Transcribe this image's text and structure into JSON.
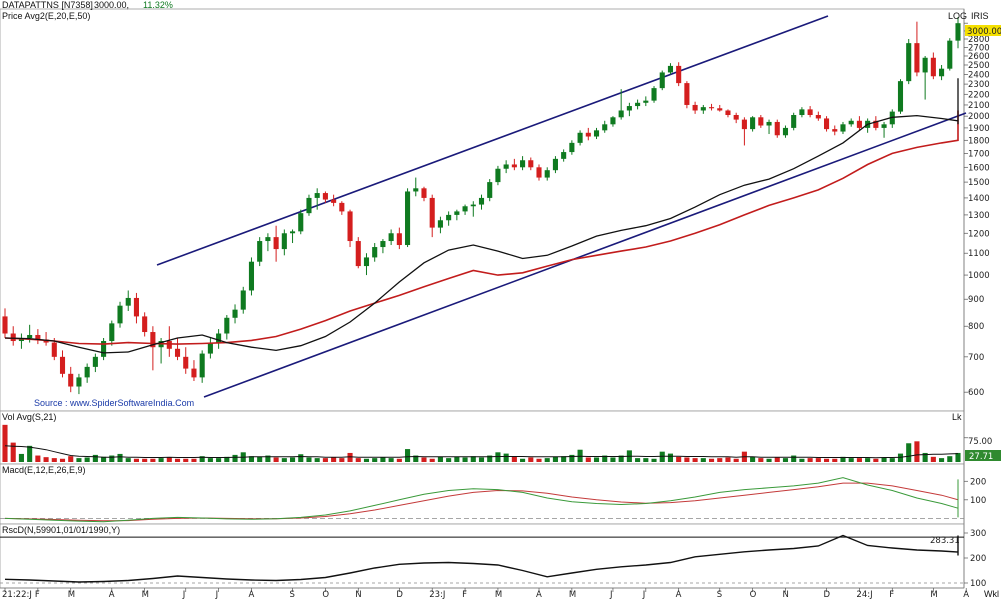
{
  "header": {
    "symbol": "DATAPATTNS [N7358]",
    "price": "3000.00,",
    "change": "11.32%",
    "overlay_label": "Price Avg2(E,20,E,50)",
    "log_label": "LOG",
    "iris_label": "IRIS",
    "last_price_badge": "3000.00",
    "source": "Source : www.SpiderSoftwareIndia.Com",
    "timeframe": "Wkl"
  },
  "colors": {
    "up": "#0f7a20",
    "down": "#d41e1e",
    "ema20": "#111111",
    "ema50": "#c21c1c",
    "trendline": "#1a1a7a",
    "macd_line": "#3a9a3a",
    "signal_line": "#c43a3a",
    "badge_price": "#f5e000",
    "badge_vol": "#2f8a2f"
  },
  "chart_data": [
    {
      "name": "price",
      "type": "candlestick",
      "scale": "log",
      "ylim": [
        560,
        3150
      ],
      "y_ticks": [
        600,
        700,
        800,
        900,
        1000,
        1100,
        1200,
        1300,
        1400,
        1500,
        1600,
        1700,
        1800,
        1900,
        2000,
        2100,
        2200,
        2300,
        2400,
        2500,
        2600,
        2700,
        2800,
        2900,
        3000
      ],
      "x_labels": [
        "21:22:J",
        "F",
        "M",
        "A",
        "M",
        "J",
        "J",
        "A",
        "S",
        "O",
        "N",
        "D",
        "23:J",
        "F",
        "M",
        "A",
        "M",
        "J",
        "J",
        "A",
        "S",
        "O",
        "N",
        "D",
        "24:J",
        "F",
        "M",
        "A"
      ],
      "x_label_week": [
        0,
        4,
        8,
        13,
        17,
        22,
        26,
        30,
        35,
        39,
        43,
        48,
        52,
        56,
        60,
        65,
        69,
        74,
        78,
        82,
        87,
        91,
        95,
        100,
        104,
        108,
        113,
        117
      ],
      "candles": [
        [
          835,
          865,
          760,
          775
        ],
        [
          775,
          800,
          735,
          750
        ],
        [
          750,
          775,
          725,
          760
        ],
        [
          760,
          805,
          745,
          770
        ],
        [
          770,
          790,
          740,
          755
        ],
        [
          755,
          780,
          735,
          745
        ],
        [
          745,
          760,
          690,
          700
        ],
        [
          700,
          720,
          640,
          650
        ],
        [
          650,
          670,
          600,
          615
        ],
        [
          615,
          650,
          595,
          640
        ],
        [
          640,
          680,
          625,
          670
        ],
        [
          670,
          710,
          655,
          700
        ],
        [
          700,
          760,
          690,
          750
        ],
        [
          750,
          820,
          735,
          810
        ],
        [
          810,
          890,
          795,
          875
        ],
        [
          875,
          935,
          855,
          905
        ],
        [
          905,
          925,
          810,
          835
        ],
        [
          835,
          850,
          765,
          780
        ],
        [
          780,
          800,
          660,
          730
        ],
        [
          730,
          760,
          680,
          750
        ],
        [
          750,
          800,
          700,
          725
        ],
        [
          725,
          760,
          690,
          700
        ],
        [
          700,
          730,
          650,
          665
        ],
        [
          665,
          690,
          630,
          640
        ],
        [
          640,
          720,
          625,
          710
        ],
        [
          710,
          760,
          695,
          745
        ],
        [
          745,
          790,
          725,
          775
        ],
        [
          775,
          840,
          755,
          830
        ],
        [
          830,
          880,
          810,
          860
        ],
        [
          860,
          950,
          845,
          935
        ],
        [
          935,
          1080,
          915,
          1060
        ],
        [
          1060,
          1180,
          1040,
          1160
        ],
        [
          1160,
          1200,
          1110,
          1180
        ],
        [
          1180,
          1240,
          1060,
          1120
        ],
        [
          1120,
          1220,
          1090,
          1200
        ],
        [
          1200,
          1220,
          1150,
          1210
        ],
        [
          1210,
          1330,
          1195,
          1310
        ],
        [
          1310,
          1420,
          1295,
          1400
        ],
        [
          1400,
          1460,
          1330,
          1430
        ],
        [
          1430,
          1440,
          1370,
          1390
        ],
        [
          1390,
          1420,
          1350,
          1370
        ],
        [
          1370,
          1380,
          1300,
          1320
        ],
        [
          1320,
          1330,
          1130,
          1160
        ],
        [
          1160,
          1180,
          1030,
          1040
        ],
        [
          1040,
          1100,
          1000,
          1080
        ],
        [
          1080,
          1150,
          1060,
          1130
        ],
        [
          1130,
          1170,
          1100,
          1160
        ],
        [
          1160,
          1220,
          1140,
          1200
        ],
        [
          1200,
          1230,
          1120,
          1140
        ],
        [
          1140,
          1460,
          1130,
          1440
        ],
        [
          1440,
          1530,
          1410,
          1460
        ],
        [
          1460,
          1470,
          1380,
          1400
        ],
        [
          1400,
          1420,
          1180,
          1230
        ],
        [
          1230,
          1290,
          1200,
          1270
        ],
        [
          1270,
          1320,
          1240,
          1300
        ],
        [
          1300,
          1330,
          1270,
          1320
        ],
        [
          1320,
          1360,
          1300,
          1350
        ],
        [
          1350,
          1380,
          1290,
          1360
        ],
        [
          1360,
          1420,
          1330,
          1400
        ],
        [
          1400,
          1520,
          1380,
          1500
        ],
        [
          1500,
          1610,
          1480,
          1590
        ],
        [
          1590,
          1650,
          1560,
          1620
        ],
        [
          1620,
          1660,
          1580,
          1600
        ],
        [
          1600,
          1680,
          1580,
          1650
        ],
        [
          1650,
          1670,
          1580,
          1600
        ],
        [
          1600,
          1620,
          1510,
          1530
        ],
        [
          1530,
          1600,
          1510,
          1580
        ],
        [
          1580,
          1680,
          1560,
          1660
        ],
        [
          1660,
          1730,
          1640,
          1710
        ],
        [
          1710,
          1800,
          1690,
          1780
        ],
        [
          1780,
          1880,
          1760,
          1860
        ],
        [
          1860,
          1900,
          1800,
          1830
        ],
        [
          1830,
          1900,
          1810,
          1880
        ],
        [
          1880,
          1960,
          1860,
          1930
        ],
        [
          1930,
          2000,
          1910,
          1990
        ],
        [
          1990,
          2250,
          1970,
          2050
        ],
        [
          2050,
          2120,
          2000,
          2090
        ],
        [
          2090,
          2150,
          2060,
          2120
        ],
        [
          2120,
          2180,
          2090,
          2140
        ],
        [
          2140,
          2280,
          2120,
          2260
        ],
        [
          2260,
          2440,
          2240,
          2420
        ],
        [
          2420,
          2520,
          2400,
          2490
        ],
        [
          2490,
          2530,
          2280,
          2310
        ],
        [
          2310,
          2330,
          2070,
          2100
        ],
        [
          2100,
          2130,
          2020,
          2050
        ],
        [
          2050,
          2100,
          2020,
          2080
        ],
        [
          2080,
          2110,
          2050,
          2070
        ],
        [
          2070,
          2100,
          2040,
          2050
        ],
        [
          2050,
          2060,
          1990,
          2010
        ],
        [
          2010,
          2030,
          1940,
          1970
        ],
        [
          1970,
          1990,
          1760,
          1890
        ],
        [
          1890,
          2000,
          1870,
          1990
        ],
        [
          1990,
          2010,
          1900,
          1920
        ],
        [
          1920,
          1970,
          1850,
          1950
        ],
        [
          1950,
          1970,
          1820,
          1840
        ],
        [
          1840,
          1920,
          1820,
          1900
        ],
        [
          1900,
          2030,
          1880,
          2010
        ],
        [
          2010,
          2080,
          1990,
          2060
        ],
        [
          2060,
          2090,
          1990,
          2010
        ],
        [
          2010,
          2040,
          1960,
          1980
        ],
        [
          1980,
          2000,
          1870,
          1890
        ],
        [
          1890,
          1920,
          1840,
          1870
        ],
        [
          1870,
          1950,
          1850,
          1930
        ],
        [
          1930,
          1980,
          1910,
          1960
        ],
        [
          1960,
          2000,
          1880,
          1900
        ],
        [
          1900,
          1980,
          1860,
          1960
        ],
        [
          1960,
          2000,
          1880,
          1900
        ],
        [
          1900,
          1950,
          1820,
          1930
        ],
        [
          1930,
          2060,
          1900,
          2040
        ],
        [
          2040,
          2350,
          2020,
          2330
        ],
        [
          2330,
          2800,
          2300,
          2750
        ],
        [
          2750,
          3020,
          2380,
          2420
        ],
        [
          2420,
          2600,
          2150,
          2580
        ],
        [
          2580,
          2640,
          2350,
          2380
        ],
        [
          2380,
          2500,
          2340,
          2460
        ],
        [
          2460,
          2810,
          2440,
          2780
        ],
        [
          2780,
          3080,
          2690,
          3000
        ]
      ],
      "ema20_every3": [
        760,
        758,
        750,
        730,
        712,
        715,
        738,
        760,
        770,
        745,
        730,
        720,
        735,
        765,
        815,
        885,
        970,
        1055,
        1115,
        1140,
        1110,
        1075,
        1090,
        1135,
        1185,
        1215,
        1240,
        1280,
        1345,
        1420,
        1480,
        1520,
        1590,
        1680,
        1780,
        1930,
        1990,
        2005,
        1980,
        1960,
        1955,
        1960,
        1945,
        1930,
        1990,
        2120,
        2230,
        2300,
        2360
      ],
      "ema50_every3": [
        760,
        756,
        750,
        742,
        740,
        745,
        742,
        740,
        742,
        745,
        752,
        765,
        790,
        820,
        855,
        885,
        915,
        950,
        985,
        1020,
        1000,
        1010,
        1040,
        1070,
        1090,
        1110,
        1130,
        1160,
        1200,
        1245,
        1300,
        1355,
        1400,
        1450,
        1525,
        1620,
        1700,
        1745,
        1780,
        1800,
        1810,
        1815,
        1818,
        1820,
        1850,
        1920,
        1960,
        2000,
        2050
      ]
    },
    {
      "name": "volume",
      "type": "bar",
      "label": "Vol Avg(S,21)",
      "unit_label": "Lk",
      "y_ticks": [
        75
      ],
      "tick_labels": [
        "75.00"
      ],
      "ylim": [
        0,
        130
      ],
      "last_value": "27.71",
      "values": [
        115,
        60,
        25,
        50,
        20,
        15,
        12,
        10,
        18,
        12,
        14,
        22,
        16,
        20,
        25,
        12,
        10,
        10,
        10,
        12,
        14,
        10,
        10,
        10,
        18,
        12,
        12,
        16,
        22,
        30,
        18,
        16,
        20,
        14,
        12,
        14,
        24,
        14,
        12,
        12,
        14,
        12,
        28,
        12,
        10,
        12,
        14,
        12,
        10,
        40,
        20,
        14,
        10,
        16,
        12,
        16,
        14,
        18,
        14,
        20,
        30,
        26,
        16,
        10,
        14,
        10,
        12,
        16,
        18,
        22,
        38,
        14,
        14,
        20,
        14,
        20,
        36,
        12,
        12,
        10,
        32,
        26,
        16,
        14,
        12,
        12,
        10,
        12,
        14,
        10,
        32,
        16,
        12,
        10,
        14,
        12,
        20,
        10,
        12,
        12,
        10,
        10,
        16,
        12,
        12,
        12,
        10,
        14,
        12,
        26,
        58,
        64,
        28,
        16,
        12,
        18,
        28
      ],
      "avg": [
        50,
        49,
        48,
        46,
        42,
        38,
        32,
        26,
        20,
        18,
        17,
        16,
        15,
        15,
        16,
        15,
        15,
        14,
        14,
        14,
        15,
        14,
        14,
        14,
        15,
        14,
        14,
        14,
        15,
        15,
        16,
        16,
        16,
        16,
        16,
        16,
        17,
        16,
        16,
        15,
        15,
        15,
        16,
        15,
        15,
        15,
        15,
        15,
        15,
        16,
        17,
        16,
        16,
        16,
        16,
        16,
        16,
        16,
        16,
        16,
        17,
        17,
        17,
        17,
        16,
        16,
        16,
        16,
        16,
        17,
        18,
        17,
        17,
        17,
        17,
        17,
        18,
        18,
        17,
        17,
        18,
        18,
        18,
        17,
        17,
        17,
        16,
        16,
        16,
        15,
        16,
        16,
        15,
        15,
        15,
        15,
        15,
        15,
        15,
        14,
        14,
        14,
        14,
        14,
        14,
        14,
        13,
        14,
        14,
        15,
        18,
        22,
        23,
        24,
        24,
        25,
        26
      ]
    },
    {
      "name": "macd",
      "type": "line",
      "label": "Macd(E,12,E,26,E,9)",
      "y_ticks": [
        100,
        200
      ],
      "ylim": [
        -25,
        250
      ],
      "macd_every3": [
        0,
        -5,
        -10,
        -15,
        -18,
        -10,
        0,
        5,
        2,
        -3,
        -5,
        -2,
        5,
        18,
        40,
        70,
        100,
        130,
        150,
        160,
        155,
        140,
        110,
        90,
        80,
        75,
        80,
        95,
        115,
        140,
        155,
        165,
        175,
        190,
        220,
        180,
        150,
        110,
        80,
        55,
        45,
        38,
        30,
        20,
        5,
        120,
        150,
        160,
        210
      ],
      "signal_every3": [
        0,
        -3,
        -6,
        -10,
        -13,
        -12,
        -5,
        0,
        2,
        0,
        -2,
        -2,
        2,
        10,
        25,
        45,
        70,
        95,
        120,
        140,
        150,
        148,
        135,
        115,
        100,
        88,
        82,
        85,
        95,
        110,
        125,
        140,
        155,
        170,
        190,
        190,
        175,
        150,
        125,
        100,
        80,
        65,
        50,
        38,
        25,
        60,
        85,
        110,
        135
      ],
      "zero_line": 0
    },
    {
      "name": "rscd",
      "type": "line",
      "label": "RscD(N,59901,01/01/1990,Y)",
      "y_ticks": [
        100,
        200,
        300
      ],
      "ylim": [
        80,
        320
      ],
      "last_value": "283.31",
      "reference_lines": [
        100,
        283.31
      ],
      "values_every3": [
        115,
        112,
        108,
        104,
        106,
        110,
        118,
        128,
        122,
        116,
        112,
        110,
        114,
        122,
        140,
        160,
        175,
        180,
        182,
        178,
        172,
        150,
        125,
        140,
        155,
        165,
        172,
        182,
        205,
        215,
        225,
        232,
        238,
        248,
        290,
        250,
        240,
        232,
        228,
        224,
        218,
        210,
        215,
        220,
        225,
        280,
        250,
        255,
        290
      ]
    }
  ]
}
